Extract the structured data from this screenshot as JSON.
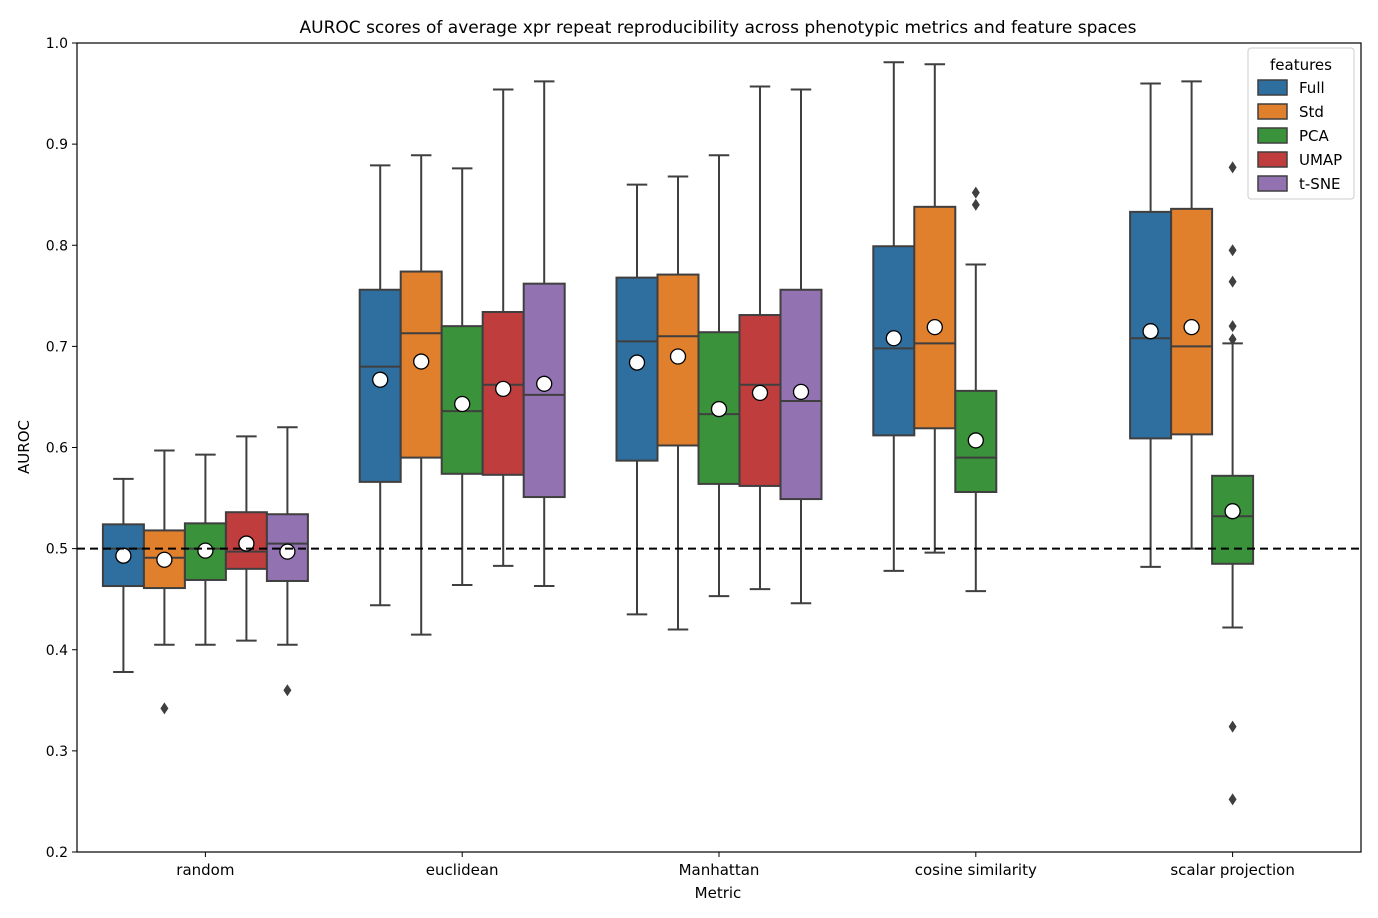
{
  "chart_data": {
    "type": "box",
    "title": "AUROC scores of average xpr repeat reproducibility across phenotypic metrics and feature spaces",
    "xlabel": "Metric",
    "ylabel": "AUROC",
    "ylim": [
      0.2,
      1.0
    ],
    "yticks": [
      "0.2",
      "0.3",
      "0.4",
      "0.5",
      "0.6",
      "0.7",
      "0.8",
      "0.9",
      "1.0"
    ],
    "reference_line": 0.5,
    "categories": [
      "random",
      "euclidean",
      "Manhattan",
      "cosine similarity",
      "scalar projection"
    ],
    "legend": {
      "title": "features",
      "position": "top-right"
    },
    "series": [
      {
        "name": "Full",
        "color": "#2f6f9f",
        "boxes": [
          {
            "min": 0.378,
            "q1": 0.463,
            "median": 0.5,
            "q3": 0.524,
            "max": 0.569,
            "mean": 0.493,
            "outliers": []
          },
          {
            "min": 0.444,
            "q1": 0.566,
            "median": 0.68,
            "q3": 0.756,
            "max": 0.879,
            "mean": 0.667,
            "outliers": []
          },
          {
            "min": 0.435,
            "q1": 0.587,
            "median": 0.705,
            "q3": 0.768,
            "max": 0.86,
            "mean": 0.684,
            "outliers": []
          },
          {
            "min": 0.478,
            "q1": 0.612,
            "median": 0.698,
            "q3": 0.799,
            "max": 0.981,
            "mean": 0.708,
            "outliers": []
          },
          {
            "min": 0.482,
            "q1": 0.609,
            "median": 0.708,
            "q3": 0.833,
            "max": 0.96,
            "mean": 0.715,
            "outliers": []
          }
        ]
      },
      {
        "name": "Std",
        "color": "#e07f2c",
        "boxes": [
          {
            "min": 0.405,
            "q1": 0.461,
            "median": 0.491,
            "q3": 0.518,
            "max": 0.597,
            "mean": 0.489,
            "outliers": [
              0.342
            ]
          },
          {
            "min": 0.415,
            "q1": 0.59,
            "median": 0.713,
            "q3": 0.774,
            "max": 0.889,
            "mean": 0.685,
            "outliers": []
          },
          {
            "min": 0.42,
            "q1": 0.602,
            "median": 0.71,
            "q3": 0.771,
            "max": 0.868,
            "mean": 0.69,
            "outliers": []
          },
          {
            "min": 0.496,
            "q1": 0.619,
            "median": 0.703,
            "q3": 0.838,
            "max": 0.979,
            "mean": 0.719,
            "outliers": []
          },
          {
            "min": 0.5,
            "q1": 0.613,
            "median": 0.7,
            "q3": 0.836,
            "max": 0.962,
            "mean": 0.719,
            "outliers": []
          }
        ]
      },
      {
        "name": "PCA",
        "color": "#3a923a",
        "boxes": [
          {
            "min": 0.405,
            "q1": 0.469,
            "median": 0.5,
            "q3": 0.525,
            "max": 0.593,
            "mean": 0.498,
            "outliers": []
          },
          {
            "min": 0.464,
            "q1": 0.574,
            "median": 0.636,
            "q3": 0.72,
            "max": 0.876,
            "mean": 0.643,
            "outliers": []
          },
          {
            "min": 0.453,
            "q1": 0.564,
            "median": 0.633,
            "q3": 0.714,
            "max": 0.889,
            "mean": 0.638,
            "outliers": []
          },
          {
            "min": 0.458,
            "q1": 0.556,
            "median": 0.59,
            "q3": 0.656,
            "max": 0.781,
            "mean": 0.607,
            "outliers": [
              0.84,
              0.852
            ]
          },
          {
            "min": 0.422,
            "q1": 0.485,
            "median": 0.532,
            "q3": 0.572,
            "max": 0.703,
            "mean": 0.537,
            "outliers": [
              0.252,
              0.324,
              0.707,
              0.72,
              0.764,
              0.795,
              0.877
            ]
          }
        ]
      },
      {
        "name": "UMAP",
        "color": "#c03d3e",
        "boxes": [
          {
            "min": 0.409,
            "q1": 0.48,
            "median": 0.497,
            "q3": 0.536,
            "max": 0.611,
            "mean": 0.505,
            "outliers": []
          },
          {
            "min": 0.483,
            "q1": 0.573,
            "median": 0.662,
            "q3": 0.734,
            "max": 0.954,
            "mean": 0.658,
            "outliers": []
          },
          {
            "min": 0.46,
            "q1": 0.562,
            "median": 0.662,
            "q3": 0.731,
            "max": 0.957,
            "mean": 0.654,
            "outliers": []
          }
        ]
      },
      {
        "name": "t-SNE",
        "color": "#9372b2",
        "boxes": [
          {
            "min": 0.405,
            "q1": 0.468,
            "median": 0.505,
            "q3": 0.534,
            "max": 0.62,
            "mean": 0.497,
            "outliers": [
              0.36
            ]
          },
          {
            "min": 0.463,
            "q1": 0.551,
            "median": 0.652,
            "q3": 0.762,
            "max": 0.962,
            "mean": 0.663,
            "outliers": []
          },
          {
            "min": 0.446,
            "q1": 0.549,
            "median": 0.646,
            "q3": 0.756,
            "max": 0.954,
            "mean": 0.655,
            "outliers": []
          }
        ]
      }
    ]
  }
}
